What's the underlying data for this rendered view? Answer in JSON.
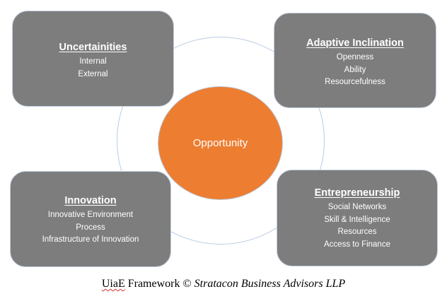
{
  "framework": {
    "center": {
      "label": "Opportunity"
    },
    "quadrants": {
      "top_left": {
        "heading": "Uncertainities",
        "lines": [
          "Internal",
          "External"
        ]
      },
      "top_right": {
        "heading": "Adaptive Inclination",
        "lines": [
          "Openness",
          "Ability",
          "Resourcefulness"
        ]
      },
      "bottom_left": {
        "heading": "Innovation",
        "lines": [
          "Innovative Environment",
          "Process",
          "Infrastructure of Innovation"
        ]
      },
      "bottom_right": {
        "heading": "Entrepreneurship",
        "lines": [
          "Social Networks",
          "Skill & Intelligence",
          "Resources",
          "Access to Finance"
        ]
      }
    }
  },
  "caption": {
    "brand": "UiaE",
    "title": "Framework ©",
    "company": "Stratacon Business Advisors LLP"
  },
  "colors": {
    "box_fill": "#767676",
    "box_border": "#c2cfe0",
    "center_fill": "#ed7d31",
    "ring_stroke": "#b9cde3",
    "text_on_shape": "#ffffff"
  }
}
